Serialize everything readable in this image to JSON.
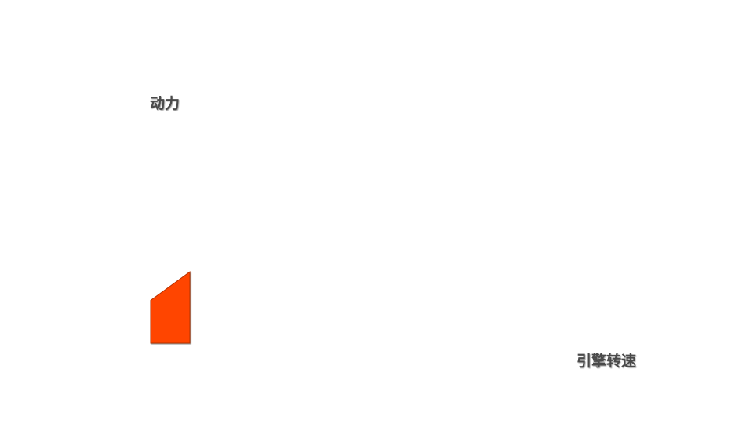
{
  "chart_data": {
    "type": "area",
    "title": "",
    "xlabel": "引擎转速",
    "ylabel": "动力",
    "ylim": [
      0,
      3
    ],
    "xlim": [
      0,
      6
    ],
    "grid": true,
    "series": [
      {
        "color": "#ff4500",
        "points": [
          {
            "x": 0,
            "y": 0
          },
          {
            "x": 0,
            "y": 0.57
          },
          {
            "x": 1,
            "y": 0.95
          },
          {
            "x": 1,
            "y": 0
          }
        ]
      }
    ]
  }
}
